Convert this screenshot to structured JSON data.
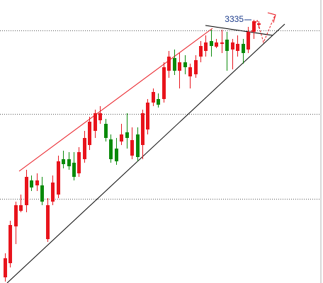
{
  "chart_data": {
    "type": "candlestick",
    "categories": [
      null,
      null,
      null,
      null,
      null,
      null,
      null,
      null,
      null,
      null,
      null,
      null,
      null,
      null,
      null,
      null,
      null,
      null,
      null,
      null,
      null,
      null,
      null,
      null,
      null,
      null,
      null,
      null,
      null,
      null,
      null,
      null,
      null,
      null,
      null,
      null,
      null,
      null,
      null,
      null,
      null,
      null,
      null,
      null,
      null,
      null,
      null,
      null,
      null
    ],
    "open": [
      2607,
      2647,
      2751,
      2795,
      2811,
      2881,
      2867,
      2867,
      2715,
      2821,
      2841,
      2941,
      2941,
      2931,
      2901,
      2941,
      2981,
      3021,
      3051,
      3041,
      2997,
      2971,
      2991,
      3017,
      2951,
      3011,
      2981,
      3025,
      3101,
      3111,
      3111,
      3191,
      3227,
      3191,
      3215,
      3175,
      3181,
      3231,
      3247,
      3275,
      3259,
      3267,
      3279,
      3251,
      3247,
      3267,
      3251,
      3301,
      3321
    ],
    "high": [
      2675,
      2767,
      2821,
      2841,
      2911,
      2895,
      2901,
      2891,
      2831,
      2895,
      2951,
      2965,
      2961,
      2961,
      2975,
      3021,
      3061,
      3081,
      3091,
      3055,
      3011,
      3001,
      3041,
      3071,
      3031,
      3031,
      3081,
      3111,
      3141,
      3127,
      3215,
      3247,
      3251,
      3241,
      3235,
      3211,
      3235,
      3275,
      3291,
      3307,
      3281,
      3307,
      3301,
      3281,
      3291,
      3281,
      3315,
      3335,
      3331
    ],
    "low": [
      2595,
      2635,
      2701,
      2791,
      2791,
      2851,
      2851,
      2811,
      2707,
      2811,
      2831,
      2915,
      2911,
      2881,
      2891,
      2931,
      2967,
      3001,
      3041,
      2991,
      2931,
      2925,
      2981,
      2971,
      2941,
      2935,
      2941,
      3011,
      3091,
      3087,
      3101,
      3171,
      3179,
      3141,
      3181,
      3141,
      3171,
      3215,
      3231,
      3231,
      3255,
      3241,
      3191,
      3195,
      3231,
      3211,
      3241,
      3281,
      3311
    ],
    "close": [
      2661,
      2755,
      2811,
      2811,
      2891,
      2861,
      2881,
      2821,
      2811,
      2875,
      2935,
      2927,
      2921,
      2891,
      2961,
      3001,
      3047,
      3071,
      3071,
      3001,
      2941,
      2935,
      3011,
      3001,
      2995,
      2947,
      3071,
      3101,
      3131,
      3095,
      3201,
      3231,
      3191,
      3215,
      3201,
      3201,
      3221,
      3261,
      3271,
      3261,
      3271,
      3271,
      3247,
      3271,
      3267,
      3241,
      3301,
      3331,
      3325
    ],
    "up_color": "#e8141c",
    "down_color": "#0a8a0a",
    "ylim": [
      2591,
      3391
    ],
    "hlines": [
      3305,
      3069,
      2829
    ],
    "annotated_index": 47
  }
}
